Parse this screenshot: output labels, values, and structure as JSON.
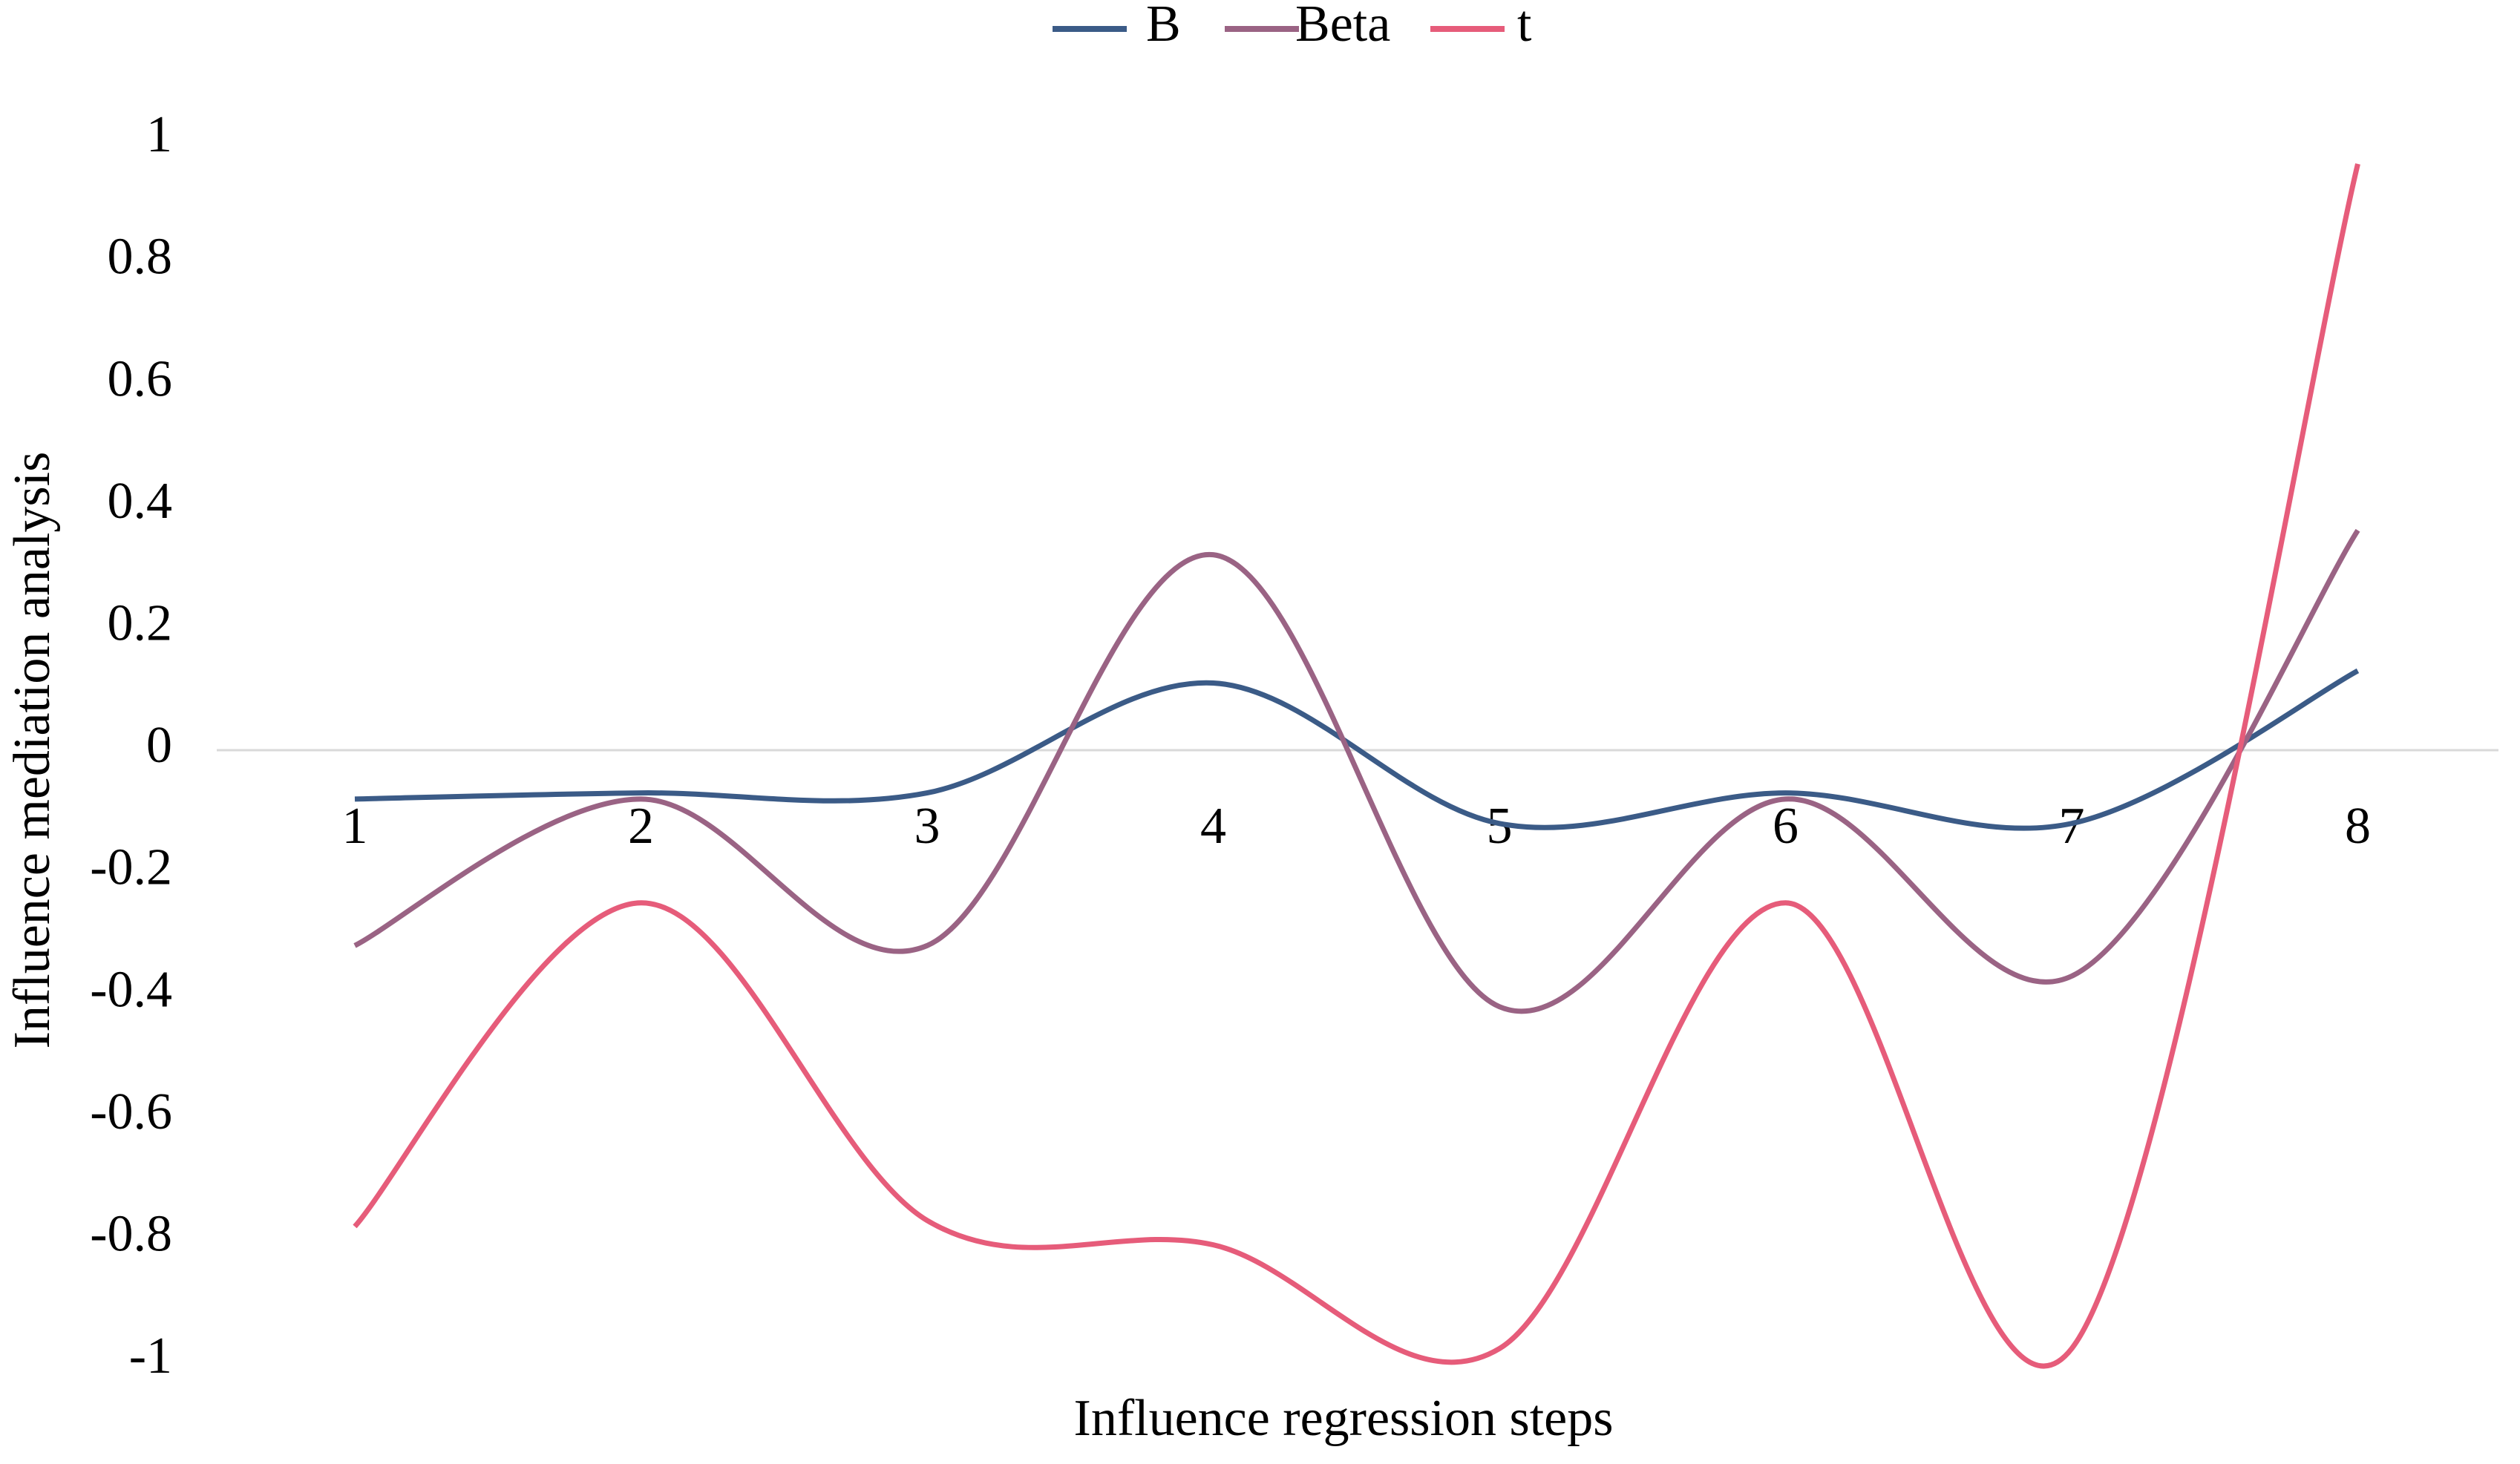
{
  "chart_data": {
    "type": "line",
    "x_label": "Influence regression steps",
    "y_label": "Influence mediation analysis",
    "categories": [
      "1",
      "2",
      "3",
      "4",
      "5",
      "6",
      "7",
      "8"
    ],
    "series": [
      {
        "name": "B",
        "color": "#3b5b87",
        "values": [
          -0.08,
          -0.07,
          -0.07,
          0.11,
          -0.12,
          -0.07,
          -0.12,
          0.13
        ]
      },
      {
        "name": "Beta",
        "color": "#9a6384",
        "values": [
          -0.32,
          -0.08,
          -0.32,
          0.32,
          -0.42,
          -0.08,
          -0.37,
          0.36
        ]
      },
      {
        "name": "t",
        "color": "#e65c7a",
        "values": [
          -0.78,
          -0.25,
          -0.77,
          -0.81,
          -0.98,
          -0.25,
          -0.98,
          0.96
        ]
      }
    ],
    "ylim": [
      -1,
      1
    ],
    "yticks": [
      -1,
      -0.8,
      -0.6,
      -0.4,
      -0.2,
      0,
      0.2,
      0.4,
      0.6,
      0.8,
      1
    ],
    "smooth": true
  }
}
